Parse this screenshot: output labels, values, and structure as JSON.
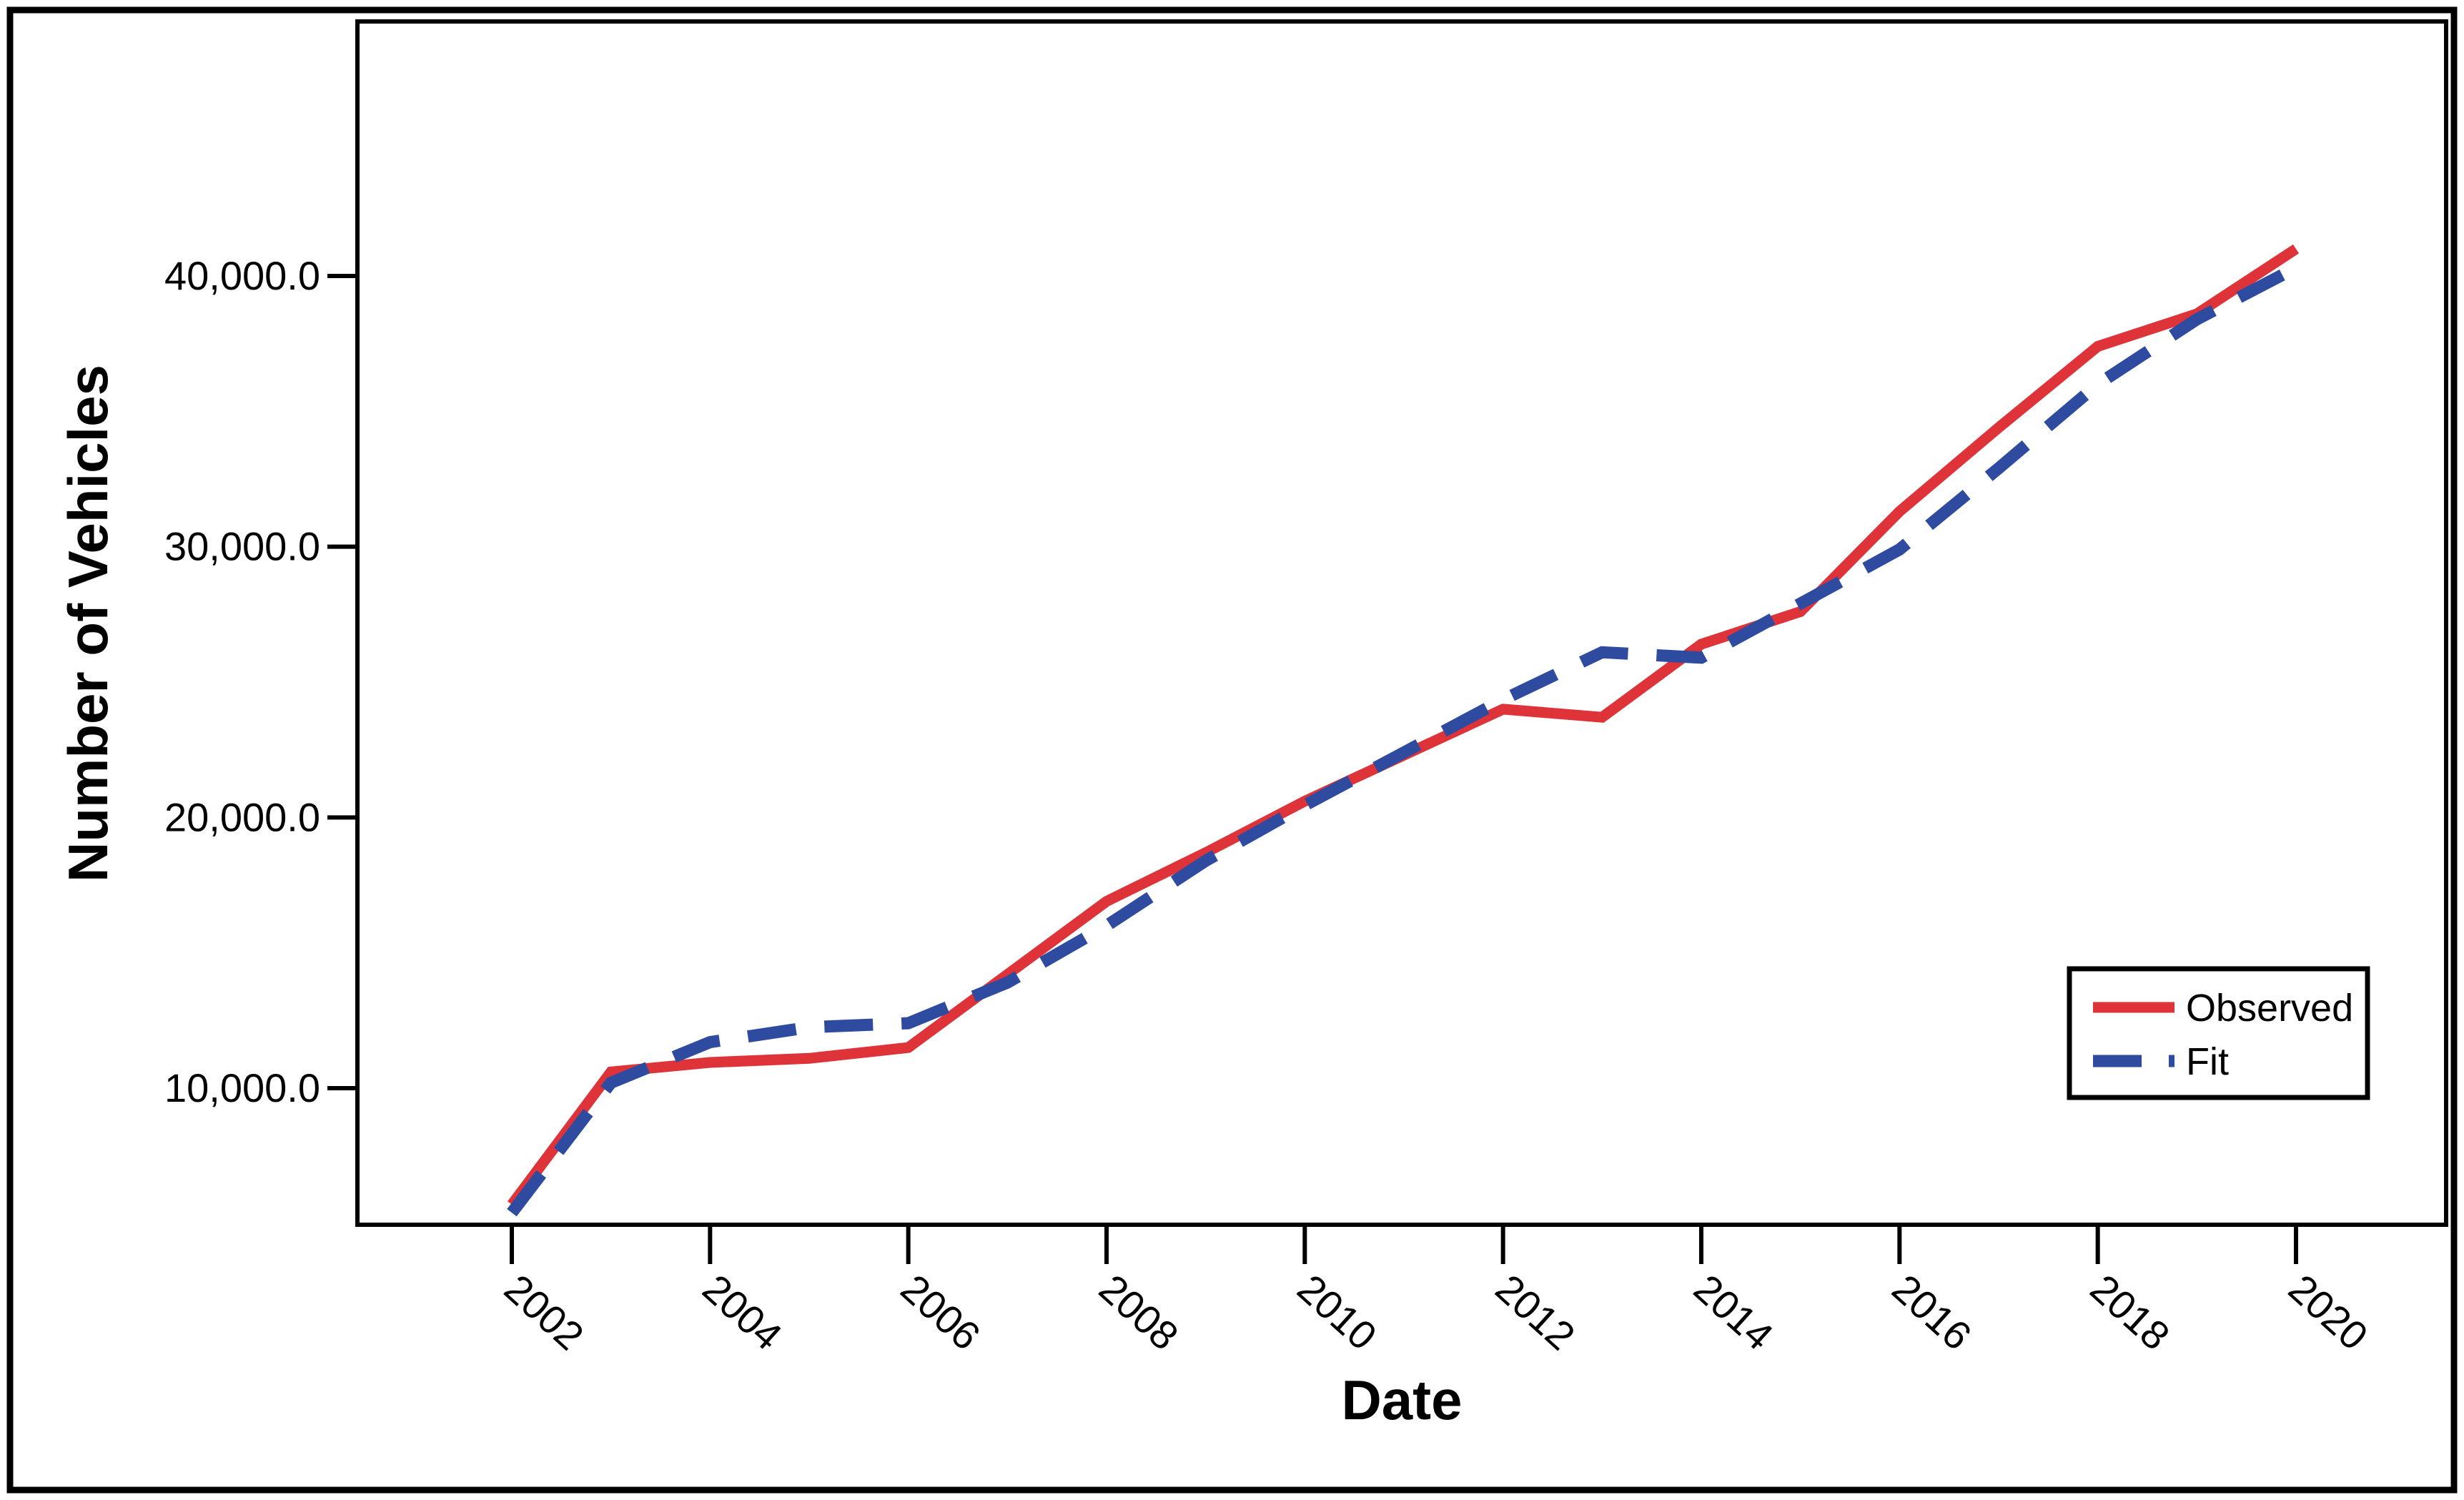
{
  "figure": {
    "background": "#ffffff",
    "border_color": "#000000"
  },
  "chart_data": {
    "type": "line",
    "title": "",
    "xlabel": "Date",
    "ylabel": "Number of Vehicles",
    "x": [
      2002,
      2003,
      2004,
      2005,
      2006,
      2007,
      2008,
      2009,
      2010,
      2011,
      2012,
      2013,
      2014,
      2015,
      2016,
      2017,
      2018,
      2019,
      2020
    ],
    "series": [
      {
        "name": "Observed",
        "style": "solid",
        "color": "#DE3339",
        "values": [
          5700,
          10600,
          10950,
          11100,
          11500,
          14200,
          16900,
          18700,
          20600,
          22300,
          24000,
          23700,
          26400,
          27600,
          31300,
          34400,
          37400,
          38600,
          41000
        ]
      },
      {
        "name": "Fit",
        "style": "dashed",
        "color": "#2E4BA0",
        "values": [
          5400,
          10200,
          11700,
          12250,
          12400,
          13900,
          16000,
          18400,
          20450,
          22400,
          24350,
          26100,
          25900,
          27900,
          29900,
          32900,
          36000,
          38400,
          40300
        ]
      }
    ],
    "x_tick_years": [
      2002,
      2004,
      2006,
      2008,
      2010,
      2012,
      2014,
      2016,
      2018,
      2020
    ],
    "x_tick_labels": [
      "2002",
      "2004",
      "2006",
      "2008",
      "2010",
      "2012",
      "2014",
      "2016",
      "2018",
      "2020"
    ],
    "y_tick_values": [
      10000,
      20000,
      30000,
      40000
    ],
    "y_tick_labels": [
      "10,000.0",
      "20,000.0",
      "30,000.0",
      "40,000.0"
    ],
    "ylim": [
      5000,
      49400
    ],
    "grid": false,
    "legend_position": "lower right"
  },
  "legend": {
    "items": [
      {
        "label": "Observed",
        "color": "#DE3339",
        "style": "solid"
      },
      {
        "label": "Fit",
        "color": "#2E4BA0",
        "style": "dashed"
      }
    ]
  }
}
